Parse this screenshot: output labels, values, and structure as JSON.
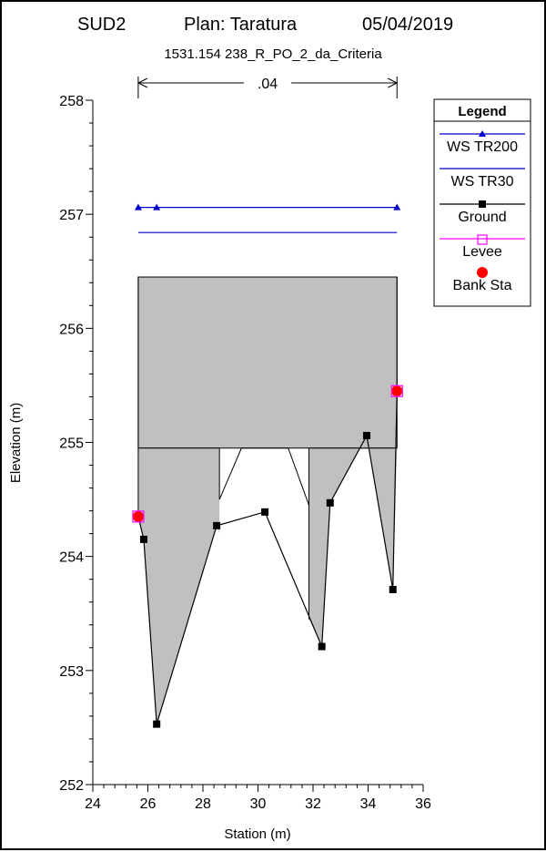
{
  "chart_data": {
    "type": "line",
    "header": {
      "left": "SUD2",
      "plan": "Plan: Taratura",
      "date": "05/04/2019"
    },
    "title": "1531.154 238_R_PO_2_da_Criteria",
    "xlabel": "Station (m)",
    "ylabel": "Elevation (m)",
    "xlim": [
      24,
      36
    ],
    "ylim": [
      252,
      258
    ],
    "xticks": [
      "24",
      "26",
      "28",
      "30",
      "32",
      "34",
      "36"
    ],
    "yticks": [
      "252",
      "253",
      "254",
      "255",
      "256",
      "257",
      "258"
    ],
    "grid": false,
    "manning": {
      "label": ".04",
      "x_start": 25.65,
      "x_end": 35.05
    },
    "legend": {
      "title": "Legend",
      "position": "top-right",
      "entries": [
        "WS TR200",
        "WS TR30",
        "Ground",
        "Levee",
        "Bank Sta"
      ]
    },
    "series": [
      {
        "name": "WS TR200",
        "color": "#0000cc",
        "marker": "triangle",
        "x": [
          25.65,
          35.05
        ],
        "y": [
          257.06,
          257.06
        ],
        "marker_x": [
          25.65,
          26.32,
          35.05
        ]
      },
      {
        "name": "WS TR30",
        "color": "#0000cc",
        "marker": "none",
        "x": [
          25.65,
          35.05
        ],
        "y": [
          256.84,
          256.84
        ]
      },
      {
        "name": "Ground",
        "color": "#000000",
        "marker": "square",
        "x": [
          25.65,
          25.85,
          26.32,
          28.5,
          30.25,
          32.32,
          32.62,
          33.95,
          34.9,
          35.05
        ],
        "y": [
          254.35,
          254.15,
          252.53,
          254.27,
          254.39,
          253.21,
          254.47,
          255.06,
          253.71,
          255.45
        ]
      },
      {
        "name": "Levee",
        "color": "#ff00ff",
        "marker": "open-square",
        "x": [
          25.65,
          35.05
        ],
        "y": [
          254.35,
          255.45
        ]
      },
      {
        "name": "Bank Sta",
        "color": "#ff0000",
        "marker": "circle",
        "x": [
          25.65,
          35.05
        ],
        "y": [
          254.35,
          255.45
        ]
      }
    ],
    "obstruction": {
      "color": "#c0c0c0",
      "block": {
        "x": [
          25.65,
          35.05
        ],
        "y": [
          254.95,
          256.45
        ]
      },
      "fill_polygon": [
        [
          25.65,
          254.95
        ],
        [
          28.6,
          254.95
        ],
        [
          28.6,
          254.5
        ],
        [
          29.4,
          254.95
        ],
        [
          31.1,
          254.95
        ],
        [
          31.85,
          254.45
        ],
        [
          31.85,
          254.95
        ],
        [
          35.05,
          254.95
        ],
        [
          34.9,
          253.71
        ],
        [
          33.95,
          255.06
        ],
        [
          32.62,
          254.47
        ],
        [
          32.32,
          253.21
        ],
        [
          31.85,
          253.45
        ],
        [
          31.85,
          254.45
        ],
        [
          31.1,
          254.95
        ],
        [
          29.4,
          254.95
        ],
        [
          28.6,
          254.5
        ],
        [
          28.6,
          254.2
        ],
        [
          28.5,
          254.27
        ],
        [
          26.32,
          252.53
        ],
        [
          25.85,
          254.15
        ],
        [
          25.65,
          254.35
        ]
      ],
      "outline": [
        [
          [
            28.6,
            254.95
          ],
          [
            28.6,
            254.5
          ]
        ],
        [
          [
            28.6,
            254.5
          ],
          [
            29.4,
            254.95
          ]
        ],
        [
          [
            31.1,
            254.95
          ],
          [
            31.85,
            254.45
          ]
        ],
        [
          [
            31.85,
            254.95
          ],
          [
            31.85,
            253.45
          ]
        ]
      ]
    }
  }
}
